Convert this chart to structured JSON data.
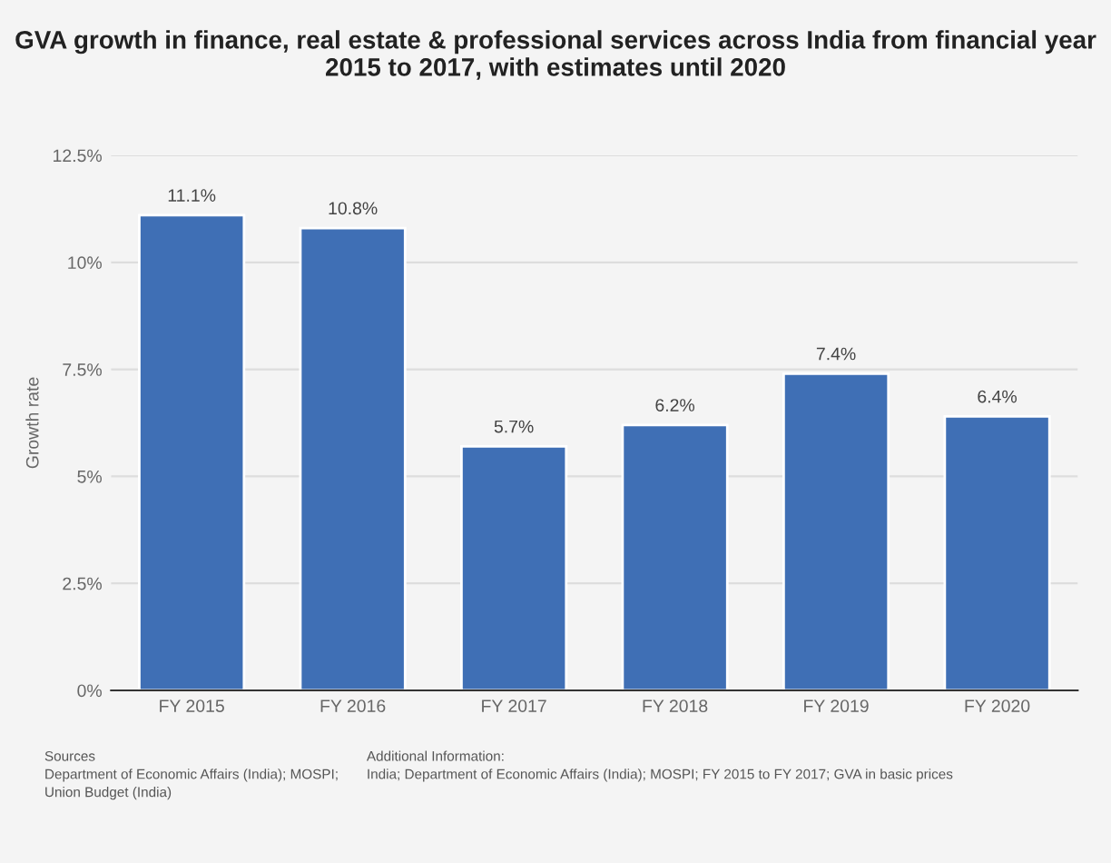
{
  "chart_data": {
    "type": "bar",
    "title": "GVA growth in finance, real estate & professional services across India from financial year 2015 to 2017, with estimates until 2020",
    "ylabel": "Growth rate",
    "categories": [
      "FY 2015",
      "FY 2016",
      "FY 2017",
      "FY 2018",
      "FY 2019",
      "FY 2020"
    ],
    "values": [
      11.1,
      10.8,
      5.7,
      6.2,
      7.4,
      6.4
    ],
    "value_labels": [
      "11.1%",
      "10.8%",
      "5.7%",
      "6.2%",
      "7.4%",
      "6.4%"
    ],
    "color": "#3f6fb5",
    "ylim": [
      0,
      12.5
    ],
    "yticks": [
      {
        "value": 0,
        "label": "0%"
      },
      {
        "value": 2.5,
        "label": "2.5%"
      },
      {
        "value": 5,
        "label": "5%"
      },
      {
        "value": 7.5,
        "label": "7.5%"
      },
      {
        "value": 10,
        "label": "10%"
      },
      {
        "value": 12.5,
        "label": "12.5%"
      }
    ],
    "grid": "y",
    "annotations": [
      "Sources\nDepartment of Economic Affairs (India); MOSPI;\nUnion Budget (India)",
      "Additional Information:\nIndia; Department of Economic Affairs (India); MOSPI; FY 2015 to FY 2017; GVA in basic prices"
    ]
  }
}
